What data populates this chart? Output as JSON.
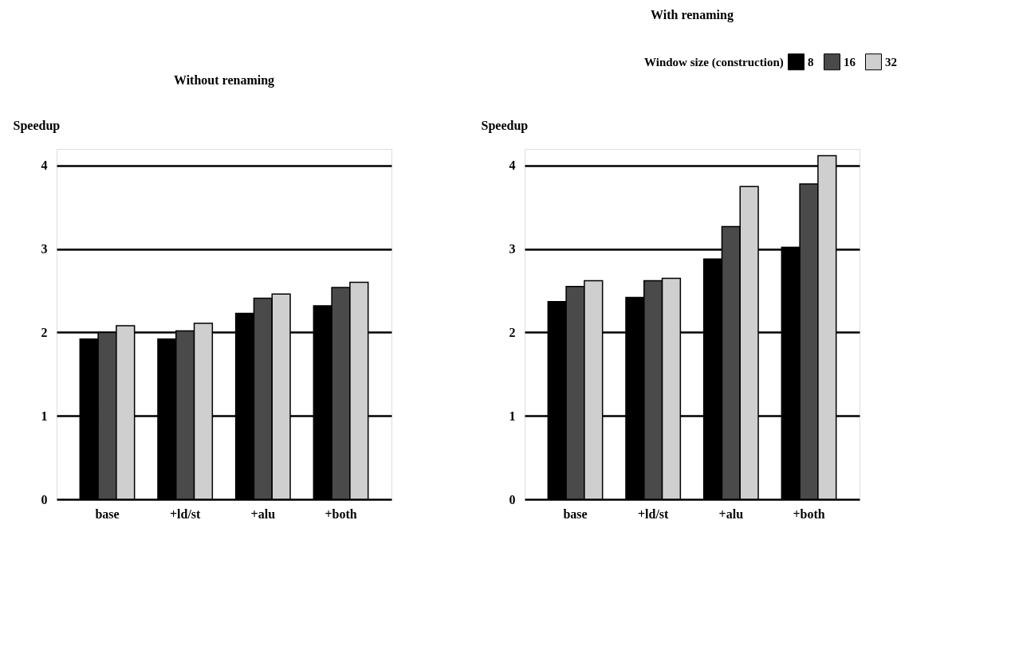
{
  "chart_data": [
    {
      "type": "bar",
      "title": "Without renaming",
      "ylabel": "Speedup",
      "categories": [
        "base",
        "+ld/st",
        "+alu",
        "+both"
      ],
      "series": [
        {
          "color": "#000000",
          "values": [
            1.92,
            1.92,
            2.23,
            2.32
          ]
        },
        {
          "color": "#4a4a4a",
          "values": [
            2.0,
            2.02,
            2.41,
            2.54
          ]
        },
        {
          "color": "#cfcfcf",
          "values": [
            2.08,
            2.11,
            2.46,
            2.6
          ]
        }
      ],
      "ylim": [
        0,
        4.2
      ],
      "yticks": [
        0,
        1,
        2,
        3,
        4
      ],
      "grid": "y",
      "legend": false
    },
    {
      "type": "bar",
      "title": "With renaming",
      "ylabel": "Speedup",
      "legend_title": "Window size (construction)",
      "categories": [
        "base",
        "+ld/st",
        "+alu",
        "+both"
      ],
      "series": [
        {
          "name": "8",
          "color": "#000000",
          "values": [
            2.37,
            2.42,
            2.88,
            3.02
          ]
        },
        {
          "name": "16",
          "color": "#4a4a4a",
          "values": [
            2.55,
            2.62,
            3.27,
            3.78
          ]
        },
        {
          "name": "32",
          "color": "#cfcfcf",
          "values": [
            2.62,
            2.65,
            3.75,
            4.12
          ]
        }
      ],
      "ylim": [
        0,
        4.2
      ],
      "yticks": [
        0,
        1,
        2,
        3,
        4
      ],
      "grid": "y",
      "legend": "top right"
    }
  ]
}
